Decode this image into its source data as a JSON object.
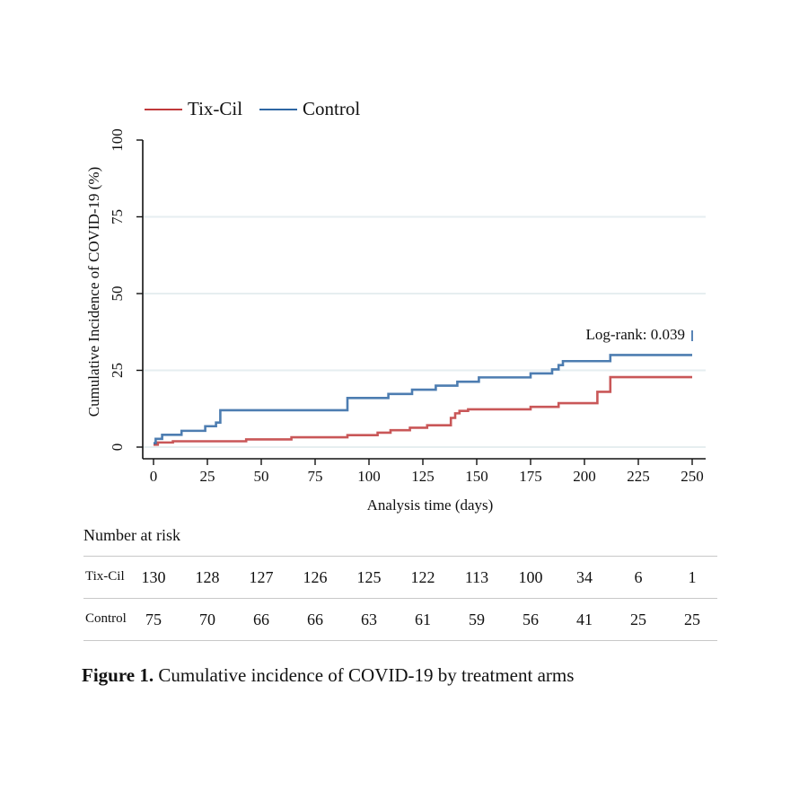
{
  "chart_data": {
    "type": "line",
    "step": true,
    "xlabel": "Analysis time (days)",
    "ylabel": "Cumulative Incidence of COVID-19 (%)",
    "xlim": [
      0,
      250
    ],
    "ylim": [
      0,
      100
    ],
    "xticks": [
      0,
      25,
      50,
      75,
      100,
      125,
      150,
      175,
      200,
      225,
      250
    ],
    "yticks": [
      0,
      25,
      50,
      75,
      100
    ],
    "grid": true,
    "legend": "top-left",
    "annotation": "Log-rank: 0.039",
    "series": [
      {
        "name": "Tix-Cil",
        "color": "#c0393b",
        "x": [
          0,
          2,
          9,
          43,
          64,
          90,
          104,
          110,
          119,
          127,
          138,
          140,
          142,
          146,
          175,
          188,
          206,
          212,
          250
        ],
        "y": [
          0.8,
          1.5,
          1.9,
          2.5,
          3.2,
          3.9,
          4.7,
          5.5,
          6.3,
          7.1,
          9.5,
          11.0,
          11.8,
          12.3,
          13.1,
          14.3,
          18.0,
          22.8,
          22.8
        ]
      },
      {
        "name": "Control",
        "color": "#2e66a3",
        "x": [
          0,
          1,
          4,
          13,
          24,
          29,
          31,
          90,
          109,
          120,
          131,
          141,
          151,
          175,
          185,
          188,
          190,
          212,
          250
        ],
        "y": [
          1.3,
          2.7,
          4.0,
          5.3,
          6.8,
          8.0,
          12.0,
          16.0,
          17.3,
          18.7,
          20.0,
          21.3,
          22.7,
          24.0,
          25.3,
          26.7,
          28.0,
          30.0,
          30.0
        ]
      }
    ]
  },
  "risk_table": {
    "title": "Number at risk",
    "rows": [
      {
        "label": "Tix-Cil",
        "values": [
          "130",
          "128",
          "127",
          "126",
          "125",
          "122",
          "113",
          "100",
          "34",
          "6",
          "1"
        ]
      },
      {
        "label": "Control",
        "values": [
          "75",
          "70",
          "66",
          "66",
          "63",
          "61",
          "59",
          "56",
          "41",
          "25",
          "25"
        ]
      }
    ]
  },
  "caption": {
    "label": "Figure 1.",
    "text": " Cumulative incidence of COVID-19 by treatment arms"
  }
}
